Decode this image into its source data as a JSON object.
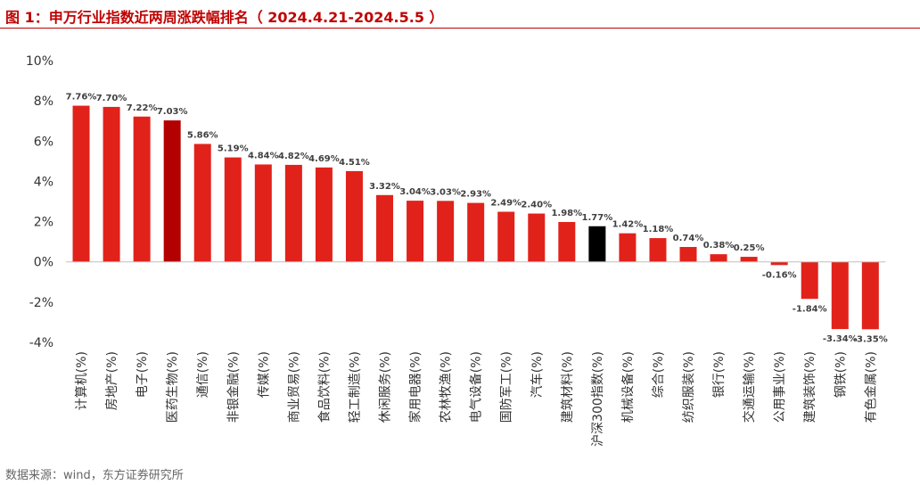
{
  "header": {
    "title": "图 1：申万行业指数近两周涨跌幅排名（ 2024.4.21-2024.5.5 ）"
  },
  "footer": {
    "source": "数据来源：wind，东方证券研究所"
  },
  "colors": {
    "bar_default": "#e1221b",
    "bar_highlight": "#b30000",
    "bar_index": "#000000",
    "title": "#c00000"
  },
  "chart_data": {
    "type": "bar",
    "title": "",
    "xlabel": "",
    "ylabel": "",
    "ylim": [
      -4,
      10
    ],
    "yticks": [
      -4,
      -2,
      0,
      2,
      4,
      6,
      8,
      10
    ],
    "ytick_labels": [
      "-4%",
      "-2%",
      "0%",
      "2%",
      "4%",
      "6%",
      "8%",
      "10%"
    ],
    "grid": false,
    "categories": [
      "计算机(%)",
      "房地产(%)",
      "电子(%)",
      "医药生物(%)",
      "通信(%)",
      "非银金融(%)",
      "传媒(%)",
      "商业贸易(%)",
      "食品饮料(%)",
      "轻工制造(%)",
      "休闲服务(%)",
      "家用电器(%)",
      "农林牧渔(%)",
      "电气设备(%)",
      "国防军工(%)",
      "汽车(%)",
      "建筑材料(%)",
      "沪深300指数(%)",
      "机械设备(%)",
      "综合(%)",
      "纺织服装(%)",
      "银行(%)",
      "交通运输(%)",
      "公用事业(%)",
      "建筑装饰(%)",
      "钢铁(%)",
      "有色金属(%)"
    ],
    "values": [
      7.76,
      7.7,
      7.22,
      7.03,
      5.86,
      5.19,
      4.84,
      4.82,
      4.69,
      4.51,
      3.32,
      3.04,
      3.03,
      2.93,
      2.49,
      2.4,
      1.98,
      1.77,
      1.42,
      1.18,
      0.74,
      0.38,
      0.25,
      -0.16,
      -1.84,
      -3.34,
      -3.35
    ],
    "value_labels": [
      "7.76%",
      "7.70%",
      "7.22%",
      "7.03%",
      "5.86%",
      "5.19%",
      "4.84%",
      "4.82%",
      "4.69%",
      "4.51%",
      "3.32%",
      "3.04%",
      "3.03%",
      "2.93%",
      "2.49%",
      "2.40%",
      "1.98%",
      "1.77%",
      "1.42%",
      "1.18%",
      "0.74%",
      "0.38%",
      "0.25%",
      "-0.16%",
      "-1.84%",
      "-3.34%",
      "-3.35%"
    ],
    "highlight_categories": {
      "医药生物(%)": "bar_highlight",
      "沪深300指数(%)": "bar_index"
    }
  }
}
